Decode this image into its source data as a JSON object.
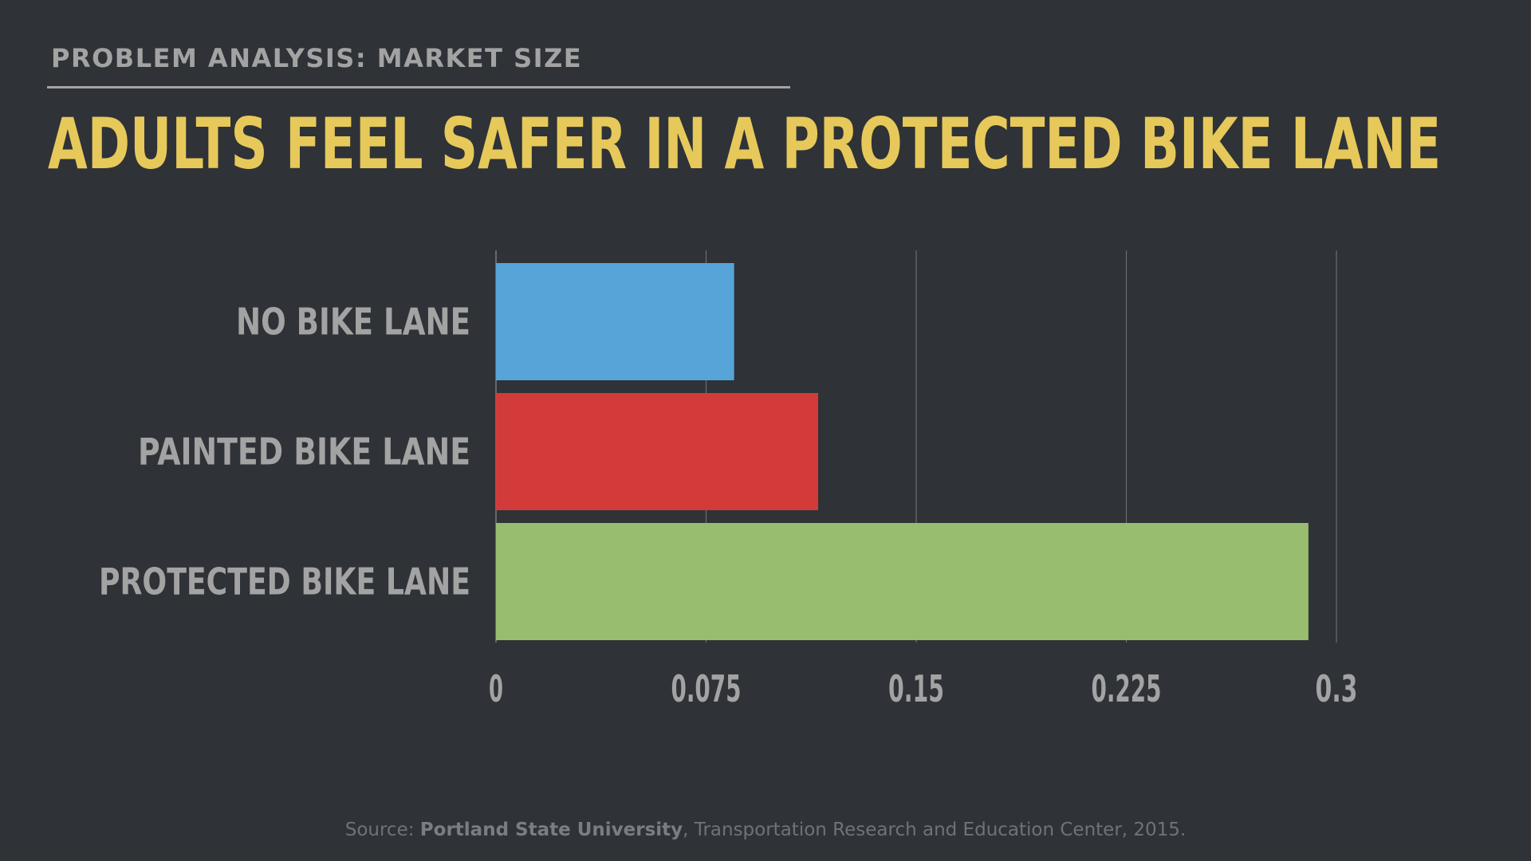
{
  "header": {
    "kicker": "PROBLEM ANALYSIS: MARKET SIZE",
    "title": "ADULTS FEEL SAFER IN A PROTECTED BIKE LANE"
  },
  "footer": {
    "source_prefix": "Source: ",
    "source_org": "Portland State University",
    "source_rest": ", Transportation Research and Education Center, 2015."
  },
  "colors": {
    "background": "#2f3237",
    "title": "#e6c95a",
    "muted": "#a3a3a3",
    "grid": "#6a6d71"
  },
  "chart_data": {
    "type": "bar",
    "orientation": "horizontal",
    "categories": [
      "NO BIKE LANE",
      "PAINTED BIKE LANE",
      "PROTECTED BIKE LANE"
    ],
    "values": [
      0.085,
      0.115,
      0.29
    ],
    "bar_colors": [
      "#57a5d8",
      "#d33b3b",
      "#99bd6e"
    ],
    "xlim": [
      0,
      0.3
    ],
    "xticks": [
      "0",
      "0.075",
      "0.15",
      "0.225",
      "0.3"
    ],
    "xtick_values": [
      0,
      0.075,
      0.15,
      0.225,
      0.3
    ],
    "grid": true,
    "title": "",
    "xlabel": "",
    "ylabel": ""
  }
}
